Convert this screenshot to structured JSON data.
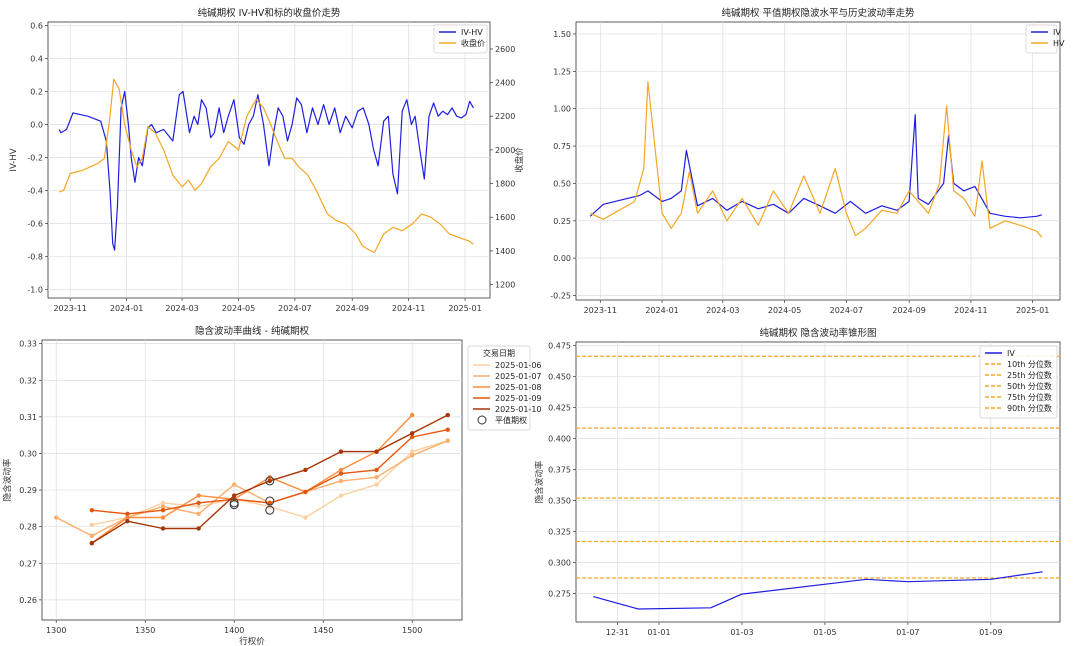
{
  "chart_data": [
    {
      "id": "p1",
      "type": "line",
      "title": "纯碱期权 IV-HV和标的收盘价走势",
      "ylabel": "IV-HV",
      "ylabel2": "收盘价",
      "ylim": [
        -1.05,
        0.62
      ],
      "y2lim": [
        1120,
        2760
      ],
      "y_ticks": [
        -1.0,
        -0.8,
        -0.6,
        -0.4,
        -0.2,
        0.0,
        0.2,
        0.4,
        0.6
      ],
      "y_tick_labels": [
        "-1.0",
        "-0.8",
        "-0.6",
        "-0.4",
        "-0.2",
        "0.0",
        "0.2",
        "0.4",
        "0.6"
      ],
      "y2_ticks": [
        1200,
        1400,
        1600,
        1800,
        2000,
        2200,
        2400,
        2600
      ],
      "y2_tick_labels": [
        "1200",
        "1400",
        "1600",
        "1800",
        "2000",
        "2200",
        "2400",
        "2600"
      ],
      "xlim": [
        "2023-10-08",
        "2025-01-28"
      ],
      "x_ticks": [
        "2023-11-01",
        "2024-01-01",
        "2024-03-01",
        "2024-05-01",
        "2024-07-01",
        "2024-09-01",
        "2024-11-01",
        "2025-01-01"
      ],
      "x_tick_labels": [
        "2023-11",
        "2024-01",
        "2024-03",
        "2024-05",
        "2024-07",
        "2024-09",
        "2024-11",
        "2025-01"
      ],
      "legend": "top-right",
      "grid": true,
      "series": [
        {
          "name": "IV-HV",
          "color": "#1f1fe0",
          "axis": "left",
          "x": [
            "2023-10-20",
            "2023-10-22",
            "2023-10-25",
            "2023-10-28",
            "2023-11-04",
            "2023-11-20",
            "2023-12-04",
            "2023-12-10",
            "2023-12-14",
            "2023-12-17",
            "2023-12-19",
            "2023-12-22",
            "2023-12-26",
            "2023-12-30",
            "2024-01-03",
            "2024-01-06",
            "2024-01-10",
            "2024-01-14",
            "2024-01-18",
            "2024-01-24",
            "2024-01-28",
            "2024-02-02",
            "2024-02-10",
            "2024-02-20",
            "2024-02-27",
            "2024-03-02",
            "2024-03-09",
            "2024-03-14",
            "2024-03-18",
            "2024-03-22",
            "2024-03-27",
            "2024-04-01",
            "2024-04-05",
            "2024-04-10",
            "2024-04-15",
            "2024-04-20",
            "2024-04-26",
            "2024-05-02",
            "2024-05-07",
            "2024-05-12",
            "2024-05-17",
            "2024-05-22",
            "2024-05-28",
            "2024-06-03",
            "2024-06-08",
            "2024-06-13",
            "2024-06-18",
            "2024-06-23",
            "2024-06-28",
            "2024-07-03",
            "2024-07-08",
            "2024-07-14",
            "2024-07-20",
            "2024-07-26",
            "2024-08-01",
            "2024-08-07",
            "2024-08-13",
            "2024-08-19",
            "2024-08-25",
            "2024-09-01",
            "2024-09-07",
            "2024-09-13",
            "2024-09-19",
            "2024-09-24",
            "2024-09-29",
            "2024-10-05",
            "2024-10-10",
            "2024-10-15",
            "2024-10-20",
            "2024-10-25",
            "2024-10-30",
            "2024-11-04",
            "2024-11-08",
            "2024-11-13",
            "2024-11-18",
            "2024-11-23",
            "2024-11-28",
            "2024-12-03",
            "2024-12-08",
            "2024-12-13",
            "2024-12-18",
            "2024-12-23",
            "2024-12-28",
            "2025-01-02",
            "2025-01-06",
            "2025-01-10"
          ],
          "values": [
            -0.03,
            -0.05,
            -0.04,
            -0.03,
            0.07,
            0.05,
            0.02,
            -0.1,
            -0.4,
            -0.72,
            -0.76,
            -0.5,
            0.1,
            0.2,
            0.0,
            -0.2,
            -0.35,
            -0.2,
            -0.25,
            -0.02,
            0.0,
            -0.05,
            -0.03,
            -0.1,
            0.18,
            0.2,
            -0.05,
            0.05,
            0.0,
            0.15,
            0.1,
            -0.08,
            -0.05,
            0.1,
            -0.05,
            0.05,
            0.15,
            -0.08,
            -0.12,
            0.0,
            0.05,
            0.18,
            0.0,
            -0.25,
            -0.05,
            0.1,
            0.05,
            -0.1,
            0.0,
            0.16,
            0.12,
            -0.05,
            0.1,
            0.0,
            0.12,
            0.0,
            0.1,
            -0.05,
            0.05,
            -0.02,
            0.08,
            0.1,
            0.0,
            -0.15,
            -0.25,
            0.02,
            0.05,
            -0.3,
            -0.42,
            0.08,
            0.15,
            0.0,
            0.05,
            -0.15,
            -0.33,
            0.05,
            0.13,
            0.05,
            0.08,
            0.06,
            0.1,
            0.05,
            0.04,
            0.06,
            0.14,
            0.1
          ]
        },
        {
          "name": "收盘价",
          "color": "#f5a623",
          "axis": "right",
          "x": [
            "2023-10-20",
            "2023-10-25",
            "2023-11-01",
            "2023-11-15",
            "2023-12-01",
            "2023-12-08",
            "2023-12-14",
            "2023-12-18",
            "2023-12-24",
            "2023-12-30",
            "2024-01-06",
            "2024-01-12",
            "2024-01-18",
            "2024-01-24",
            "2024-02-01",
            "2024-02-10",
            "2024-02-20",
            "2024-03-01",
            "2024-03-08",
            "2024-03-15",
            "2024-03-22",
            "2024-04-01",
            "2024-04-10",
            "2024-04-20",
            "2024-05-01",
            "2024-05-10",
            "2024-05-20",
            "2024-05-28",
            "2024-06-05",
            "2024-06-12",
            "2024-06-20",
            "2024-06-28",
            "2024-07-05",
            "2024-07-15",
            "2024-07-25",
            "2024-08-05",
            "2024-08-15",
            "2024-08-25",
            "2024-09-05",
            "2024-09-12",
            "2024-09-18",
            "2024-09-25",
            "2024-10-05",
            "2024-10-15",
            "2024-10-25",
            "2024-11-05",
            "2024-11-15",
            "2024-11-25",
            "2024-12-05",
            "2024-12-15",
            "2024-12-25",
            "2025-01-05",
            "2025-01-10"
          ],
          "values": [
            1750,
            1760,
            1860,
            1880,
            1920,
            1950,
            2200,
            2420,
            2360,
            2150,
            2000,
            1900,
            1950,
            2140,
            2100,
            2000,
            1850,
            1780,
            1820,
            1760,
            1800,
            1900,
            1950,
            2050,
            2000,
            2200,
            2300,
            2250,
            2150,
            2050,
            1950,
            1950,
            1900,
            1850,
            1750,
            1620,
            1580,
            1560,
            1500,
            1430,
            1410,
            1390,
            1500,
            1540,
            1520,
            1560,
            1620,
            1600,
            1560,
            1500,
            1480,
            1460,
            1440
          ]
        }
      ]
    },
    {
      "id": "p2",
      "type": "line",
      "title": "纯碱期权 平值期权隐波水平与历史波动率走势",
      "ylim": [
        -0.28,
        1.58
      ],
      "y_ticks": [
        -0.25,
        0.0,
        0.25,
        0.5,
        0.75,
        1.0,
        1.25,
        1.5
      ],
      "y_tick_labels": [
        "-0.25",
        "0.00",
        "0.25",
        "0.50",
        "0.75",
        "1.00",
        "1.25",
        "1.50"
      ],
      "xlim": [
        "2023-10-08",
        "2025-01-28"
      ],
      "x_ticks": [
        "2023-11-01",
        "2024-01-01",
        "2024-03-01",
        "2024-05-01",
        "2024-07-01",
        "2024-09-01",
        "2024-11-01",
        "2025-01-01"
      ],
      "x_tick_labels": [
        "2023-11",
        "2024-01",
        "2024-03",
        "2024-05",
        "2024-07",
        "2024-09",
        "2024-11",
        "2025-01"
      ],
      "legend": "top-right",
      "grid": true,
      "series": [
        {
          "name": "IV",
          "color": "#1f1fe0",
          "x": [
            "2023-10-22",
            "2023-11-04",
            "2023-12-10",
            "2023-12-18",
            "2024-01-01",
            "2024-01-10",
            "2024-01-20",
            "2024-01-25",
            "2024-02-05",
            "2024-02-20",
            "2024-03-05",
            "2024-03-20",
            "2024-04-05",
            "2024-04-20",
            "2024-05-05",
            "2024-05-20",
            "2024-06-05",
            "2024-06-20",
            "2024-07-05",
            "2024-07-20",
            "2024-08-05",
            "2024-08-20",
            "2024-09-01",
            "2024-09-07",
            "2024-09-10",
            "2024-09-20",
            "2024-10-05",
            "2024-10-10",
            "2024-10-15",
            "2024-10-25",
            "2024-11-05",
            "2024-11-20",
            "2024-12-05",
            "2024-12-20",
            "2025-01-05",
            "2025-01-10"
          ],
          "values": [
            0.28,
            0.36,
            0.42,
            0.45,
            0.38,
            0.4,
            0.45,
            0.72,
            0.35,
            0.4,
            0.32,
            0.38,
            0.33,
            0.36,
            0.3,
            0.4,
            0.35,
            0.3,
            0.38,
            0.3,
            0.35,
            0.32,
            0.38,
            0.96,
            0.4,
            0.36,
            0.5,
            0.82,
            0.5,
            0.45,
            0.48,
            0.3,
            0.28,
            0.27,
            0.28,
            0.29
          ]
        },
        {
          "name": "HV",
          "color": "#f5a623",
          "x": [
            "2023-10-22",
            "2023-11-04",
            "2023-12-05",
            "2023-12-14",
            "2023-12-18",
            "2023-12-24",
            "2024-01-01",
            "2024-01-10",
            "2024-01-20",
            "2024-01-28",
            "2024-02-05",
            "2024-02-20",
            "2024-03-05",
            "2024-03-20",
            "2024-04-05",
            "2024-04-20",
            "2024-05-05",
            "2024-05-20",
            "2024-06-05",
            "2024-06-20",
            "2024-07-01",
            "2024-07-10",
            "2024-07-20",
            "2024-08-05",
            "2024-08-20",
            "2024-09-01",
            "2024-09-20",
            "2024-10-01",
            "2024-10-08",
            "2024-10-15",
            "2024-10-25",
            "2024-11-05",
            "2024-11-12",
            "2024-11-20",
            "2024-12-05",
            "2024-12-20",
            "2025-01-05",
            "2025-01-10"
          ],
          "values": [
            0.3,
            0.26,
            0.38,
            0.6,
            1.18,
            0.8,
            0.3,
            0.2,
            0.3,
            0.58,
            0.3,
            0.45,
            0.25,
            0.4,
            0.22,
            0.45,
            0.3,
            0.55,
            0.3,
            0.6,
            0.3,
            0.15,
            0.2,
            0.32,
            0.3,
            0.45,
            0.3,
            0.5,
            1.02,
            0.45,
            0.4,
            0.28,
            0.65,
            0.2,
            0.25,
            0.22,
            0.18,
            0.14
          ]
        }
      ]
    },
    {
      "id": "p3",
      "type": "line",
      "title": "隐含波动率曲线 - 纯碱期权",
      "xlabel": "行权价",
      "ylabel": "隐含波动率",
      "xlim": [
        1292,
        1528
      ],
      "ylim": [
        0.2545,
        0.331
      ],
      "x_ticks": [
        1300,
        1350,
        1400,
        1450,
        1500
      ],
      "x_tick_labels": [
        "1300",
        "1350",
        "1400",
        "1450",
        "1500"
      ],
      "y_ticks": [
        0.26,
        0.27,
        0.28,
        0.29,
        0.3,
        0.31,
        0.32,
        0.33
      ],
      "y_tick_labels": [
        "0.26",
        "0.27",
        "0.28",
        "0.29",
        "0.30",
        "0.31",
        "0.32",
        "0.33"
      ],
      "legend_title": "交易日期",
      "legend": "top-right-outside",
      "grid": true,
      "series": [
        {
          "name": "2025-01-06",
          "color": "#fdd0a2",
          "x": [
            1320,
            1340,
            1360,
            1380,
            1400,
            1420,
            1440,
            1460,
            1480,
            1500,
            1520
          ],
          "values": [
            0.2805,
            0.2825,
            0.2865,
            0.2855,
            0.2875,
            0.2855,
            0.2825,
            0.2885,
            0.2915,
            0.3005,
            0.3035
          ]
        },
        {
          "name": "2025-01-07",
          "color": "#fdae6b",
          "x": [
            1300,
            1320,
            1340,
            1360,
            1380,
            1400,
            1420,
            1440,
            1460,
            1480,
            1500,
            1520
          ],
          "values": [
            0.2825,
            0.2775,
            0.2825,
            0.2855,
            0.2835,
            0.2915,
            0.2865,
            0.2895,
            0.2925,
            0.2935,
            0.2995,
            0.3035
          ]
        },
        {
          "name": "2025-01-08",
          "color": "#fd8d3c",
          "x": [
            1320,
            1340,
            1360,
            1380,
            1400,
            1420,
            1440,
            1460,
            1480,
            1500
          ],
          "values": [
            0.2755,
            0.2825,
            0.2825,
            0.2885,
            0.2875,
            0.2935,
            0.2895,
            0.2955,
            0.3005,
            0.3105
          ]
        },
        {
          "name": "2025-01-09",
          "color": "#e6550d",
          "x": [
            1320,
            1340,
            1360,
            1380,
            1400,
            1420,
            1440,
            1460,
            1480,
            1500,
            1520
          ],
          "values": [
            0.2845,
            0.2835,
            0.2845,
            0.2865,
            0.2875,
            0.2865,
            0.2895,
            0.2945,
            0.2955,
            0.3045,
            0.3065
          ]
        },
        {
          "name": "2025-01-10",
          "color": "#a63603",
          "x": [
            1320,
            1340,
            1360,
            1380,
            1400,
            1420,
            1440,
            1460,
            1480,
            1500,
            1520
          ],
          "values": [
            0.2755,
            0.2815,
            0.2795,
            0.2795,
            0.2885,
            0.2925,
            0.2955,
            0.3005,
            0.3005,
            0.3055,
            0.3105
          ]
        }
      ],
      "atm_label": "平值期权",
      "atm_points": [
        {
          "x": 1400,
          "y": 0.2865
        },
        {
          "x": 1400,
          "y": 0.286
        },
        {
          "x": 1420,
          "y": 0.2925
        },
        {
          "x": 1420,
          "y": 0.287
        },
        {
          "x": 1420,
          "y": 0.2845
        }
      ]
    },
    {
      "id": "p4",
      "type": "line",
      "title": "纯碱期权 隐含波动率锥形图",
      "ylabel": "隐含波动率",
      "ylim": [
        0.252,
        0.478
      ],
      "y_ticks": [
        0.275,
        0.3,
        0.325,
        0.35,
        0.375,
        0.4,
        0.425,
        0.45,
        0.475
      ],
      "y_tick_labels": [
        "0.275",
        "0.300",
        "0.325",
        "0.350",
        "0.375",
        "0.400",
        "0.425",
        "0.450",
        "0.475"
      ],
      "xlim": [
        "2024-12-30 00:00",
        "2025-01-10 16:00"
      ],
      "x_ticks": [
        "2024-12-31 00:00",
        "2025-01-01 00:00",
        "2025-01-03 00:00",
        "2025-01-05 00:00",
        "2025-01-07 00:00",
        "2025-01-09 00:00"
      ],
      "x_tick_labels": [
        "12-31",
        "01-01",
        "01-03",
        "01-05",
        "01-07",
        "01-09"
      ],
      "legend": "top-right",
      "grid": true,
      "series": [
        {
          "name": "IV",
          "color": "#1f1fe0",
          "x": [
            "2024-12-30 10:00",
            "2024-12-31 12:00",
            "2025-01-02 06:00",
            "2025-01-03 00:00",
            "2025-01-06 00:00",
            "2025-01-07 00:00",
            "2025-01-09 00:00",
            "2025-01-10 06:00"
          ],
          "values": [
            0.2725,
            0.2625,
            0.2635,
            0.2745,
            0.2865,
            0.2845,
            0.2865,
            0.2925
          ]
        }
      ],
      "quantiles": [
        {
          "name": "10th 分位数",
          "value": 0.2875
        },
        {
          "name": "25th 分位数",
          "value": 0.317
        },
        {
          "name": "50th 分位数",
          "value": 0.352
        },
        {
          "name": "75th 分位数",
          "value": 0.4085
        },
        {
          "name": "90th 分位数",
          "value": 0.4665
        }
      ],
      "quantile_color": "#f5a623"
    }
  ]
}
